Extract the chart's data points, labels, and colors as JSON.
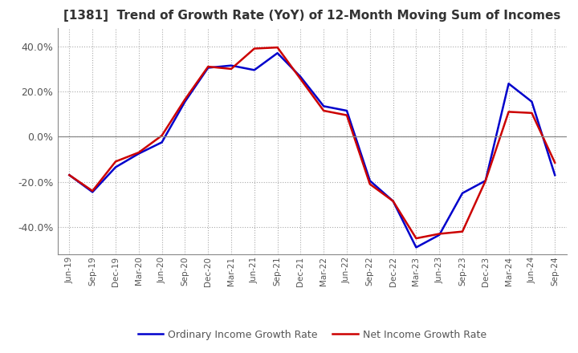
{
  "title": "[1381]  Trend of Growth Rate (YoY) of 12-Month Moving Sum of Incomes",
  "title_fontsize": 11,
  "title_color": "#333333",
  "xlabel": "",
  "ylabel": "",
  "ylim": [
    -0.52,
    0.48
  ],
  "yticks": [
    -0.4,
    -0.2,
    0.0,
    0.2,
    0.4
  ],
  "ytick_labels": [
    "-40.0%",
    "-20.0%",
    "0.0%",
    "20.0%",
    "40.0%"
  ],
  "background_color": "#ffffff",
  "grid_color": "#aaaaaa",
  "zero_line_color": "#888888",
  "ordinary_color": "#0000cc",
  "net_color": "#cc0000",
  "legend_labels": [
    "Ordinary Income Growth Rate",
    "Net Income Growth Rate"
  ],
  "x_labels": [
    "Jun-19",
    "Sep-19",
    "Dec-19",
    "Mar-20",
    "Jun-20",
    "Sep-20",
    "Dec-20",
    "Mar-21",
    "Jun-21",
    "Sep-21",
    "Dec-21",
    "Mar-22",
    "Jun-22",
    "Sep-22",
    "Dec-22",
    "Mar-23",
    "Jun-23",
    "Sep-23",
    "Dec-23",
    "Mar-24",
    "Jun-24",
    "Sep-24"
  ],
  "ordinary_income_growth": [
    -0.17,
    -0.245,
    -0.135,
    -0.075,
    -0.025,
    0.155,
    0.305,
    0.315,
    0.295,
    0.37,
    0.265,
    0.135,
    0.115,
    -0.195,
    -0.285,
    -0.49,
    -0.435,
    -0.25,
    -0.195,
    0.235,
    0.155,
    -0.17
  ],
  "net_income_growth": [
    -0.17,
    -0.24,
    -0.11,
    -0.07,
    0.005,
    0.165,
    0.31,
    0.3,
    0.39,
    0.395,
    0.255,
    0.115,
    0.095,
    -0.21,
    -0.285,
    -0.45,
    -0.43,
    -0.42,
    -0.195,
    0.11,
    0.105,
    -0.115
  ]
}
